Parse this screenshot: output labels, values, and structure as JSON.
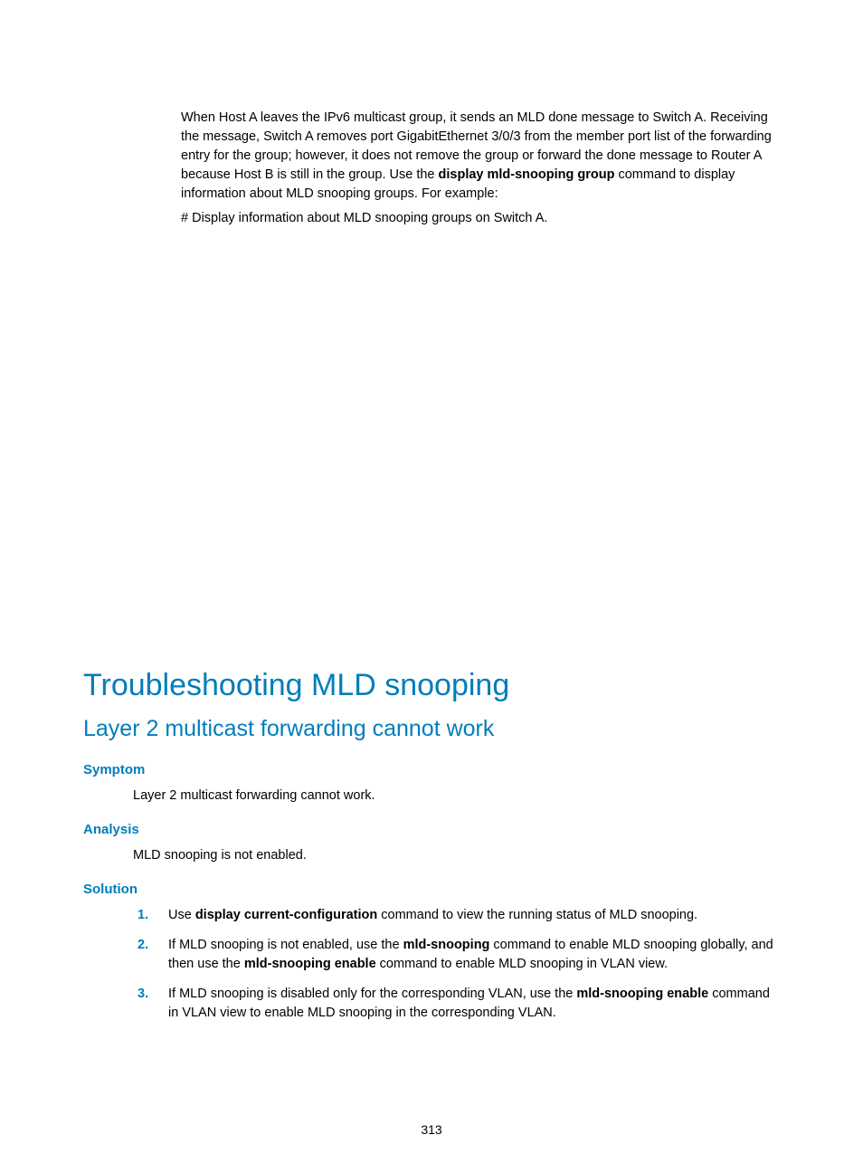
{
  "intro": {
    "para1_part1": "When Host A leaves the IPv6 multicast group, it sends an MLD done message to Switch A. Receiving the message, Switch A removes port GigabitEthernet 3/0/3 from the member port list of the forwarding entry for the group; however, it does not remove the group or forward the done message to Router A because Host B is still in the group. Use the ",
    "para1_bold": "display mld-snooping group",
    "para1_part2": " command to display information about MLD snooping groups. For example:",
    "para2": "# Display information about MLD snooping groups on Switch A."
  },
  "heading_main": "Troubleshooting MLD snooping",
  "heading_sub": "Layer 2 multicast forwarding cannot work",
  "symptom": {
    "label": "Symptom",
    "text": "Layer 2 multicast forwarding cannot work."
  },
  "analysis": {
    "label": "Analysis",
    "text": "MLD snooping is not enabled."
  },
  "solution": {
    "label": "Solution",
    "steps": {
      "s1": {
        "num": "1.",
        "t1": "Use ",
        "b1": "display current-configuration",
        "t2": " command to view the running status of MLD snooping."
      },
      "s2": {
        "num": "2.",
        "t1": "If MLD snooping is not enabled, use the ",
        "b1": "mld-snooping",
        "t2": " command to enable MLD snooping globally, and then use the ",
        "b2": "mld-snooping enable",
        "t3": " command to enable MLD snooping in VLAN view."
      },
      "s3": {
        "num": "3.",
        "t1": "If MLD snooping is disabled only for the corresponding VLAN, use the ",
        "b1": "mld-snooping enable",
        "t2": " command in VLAN view to enable MLD snooping in the corresponding VLAN."
      }
    }
  },
  "page_number": "313",
  "colors": {
    "accent": "#007dba",
    "text": "#000000",
    "background": "#ffffff"
  },
  "typography": {
    "body_fontsize_pt": 11,
    "h1_fontsize_pt": 26,
    "h2_fontsize_pt": 19,
    "h3_fontsize_pt": 11,
    "font_family": "Arial"
  }
}
